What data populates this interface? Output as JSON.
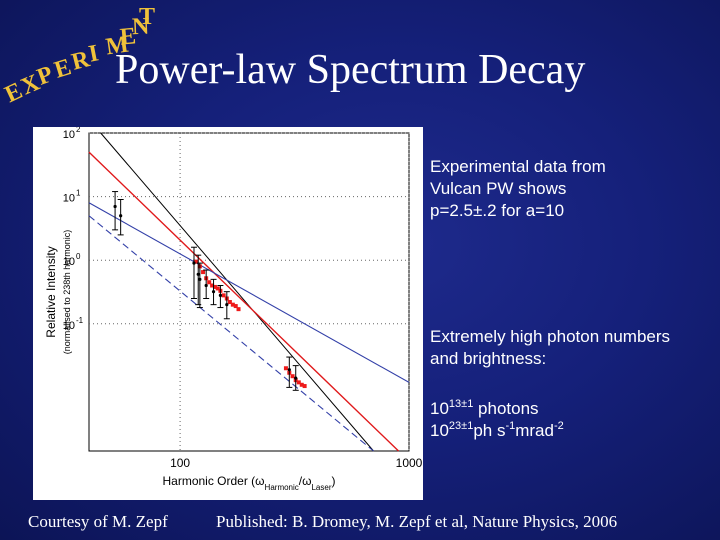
{
  "stamp": {
    "text": "EXPERIMENT",
    "color": "#f0c23a"
  },
  "title": "Power-law Spectrum Decay",
  "side_notes": {
    "lines1": [
      "Experimental data from",
      "Vulcan PW shows",
      "p=2.5±.2 for a=10"
    ],
    "lines2": [
      "Extremely high photon numbers",
      "and brightness:"
    ],
    "photons": {
      "base": "10",
      "exp": "13±1",
      "rest": " photons"
    },
    "brightness": {
      "base": "10",
      "exp": "23±1",
      "mid": "ph s",
      "exp2": "-1",
      "unit": "mrad",
      "exp3": "-2"
    }
  },
  "footer": {
    "courtesy": "Courtesy of M. Zepf",
    "published": "Published: B. Dromey, M. Zepf et al, Nature Physics, 2006"
  },
  "chart_data": {
    "type": "line",
    "x_scale": "log",
    "y_scale": "log",
    "xlim": [
      40,
      1000
    ],
    "ylim": [
      0.001,
      100
    ],
    "xticks": [
      100,
      1000
    ],
    "yticks": [
      {
        "base": "10",
        "exp": "2",
        "value": 100
      },
      {
        "base": "10",
        "exp": "1",
        "value": 10
      },
      {
        "base": "10",
        "exp": "0",
        "value": 1
      },
      {
        "base": "10",
        "exp": "-1",
        "value": 0.1
      }
    ],
    "xlabel": "Harmonic Order (ω",
    "xlabel_sub1": "Harmonic",
    "xlabel_mid": "/ω",
    "xlabel_sub2": "Laser",
    "xlabel_end": ")",
    "ylabel": "Relative Intensity",
    "ylabel2": "(normalised to 238th harmonic)",
    "grid": "dotted at decades",
    "series": [
      {
        "style": "solid-black",
        "x": [
          45,
          700
        ],
        "y": [
          100,
          0.001
        ]
      },
      {
        "style": "solid-red",
        "x": [
          40,
          900
        ],
        "y": [
          50,
          0.001
        ]
      },
      {
        "style": "dashed-blue",
        "x": [
          40,
          700
        ],
        "y": [
          5,
          0.001
        ]
      },
      {
        "style": "solid-blue",
        "x": [
          40,
          1000
        ],
        "y": [
          8,
          0.012
        ]
      }
    ],
    "measurements": [
      {
        "x": 52,
        "y": 7,
        "lo": 3,
        "hi": 12
      },
      {
        "x": 55,
        "y": 5,
        "lo": 2.5,
        "hi": 9
      },
      {
        "x": 115,
        "y": 0.9,
        "lo": 0.25,
        "hi": 1.6
      },
      {
        "x": 120,
        "y": 0.6,
        "lo": 0.2,
        "hi": 1.2
      },
      {
        "x": 122,
        "y": 0.5,
        "lo": 0.18,
        "hi": 0.9
      },
      {
        "x": 130,
        "y": 0.4,
        "lo": 0.25,
        "hi": 0.7
      },
      {
        "x": 140,
        "y": 0.32,
        "lo": 0.2,
        "hi": 0.5
      },
      {
        "x": 150,
        "y": 0.28,
        "lo": 0.18,
        "hi": 0.4
      },
      {
        "x": 160,
        "y": 0.2,
        "lo": 0.12,
        "hi": 0.32
      },
      {
        "x": 300,
        "y": 0.019,
        "lo": 0.01,
        "hi": 0.03
      },
      {
        "x": 320,
        "y": 0.014,
        "lo": 0.009,
        "hi": 0.022
      }
    ],
    "red_points_x": [
      118,
      122,
      126,
      130,
      134,
      138,
      142,
      146,
      150,
      155,
      160,
      165,
      170,
      175,
      180,
      290,
      300,
      310,
      320,
      330,
      340,
      350
    ],
    "red_points_y": [
      0.95,
      0.8,
      0.65,
      0.52,
      0.45,
      0.4,
      0.38,
      0.36,
      0.33,
      0.28,
      0.25,
      0.22,
      0.2,
      0.19,
      0.17,
      0.02,
      0.017,
      0.015,
      0.013,
      0.012,
      0.011,
      0.0105
    ]
  }
}
